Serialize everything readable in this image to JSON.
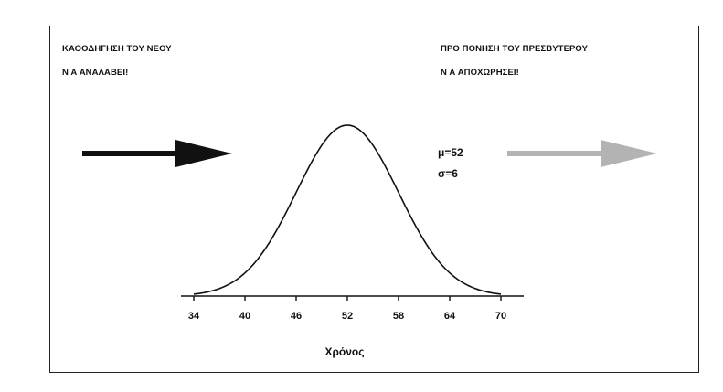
{
  "annotations": {
    "left_line1": "ΚΑΘΟΔΗΓΗΣΗ ΤΟΥ ΝΕΟΥ",
    "left_line2": "Ν Α ΑΝΑΛΑΒΕΙ!",
    "right_line1": "ΠΡΟ ΠΟΝΗΣΗ ΤΟΥ ΠΡΕΣΒΥΤΕΡΟΥ",
    "right_line2": "Ν Α ΑΠΟΧΩΡΗΣΕΙ!"
  },
  "arrows": {
    "left_color": "#111111",
    "right_color": "#b3b3b3"
  },
  "chart_data": {
    "type": "line",
    "curve": "normal-distribution",
    "mean": 52,
    "sd": 6,
    "mean_label": "μ=52",
    "sd_label": "σ=6",
    "xlabel": "Χρόνος",
    "xlim": [
      34,
      70
    ],
    "x_ticks": [
      34,
      40,
      46,
      52,
      58,
      64,
      70
    ],
    "x_tick_labels": [
      "34",
      "40",
      "46",
      "52",
      "58",
      "64",
      "70"
    ],
    "grid": false,
    "line_color": "#111111"
  }
}
